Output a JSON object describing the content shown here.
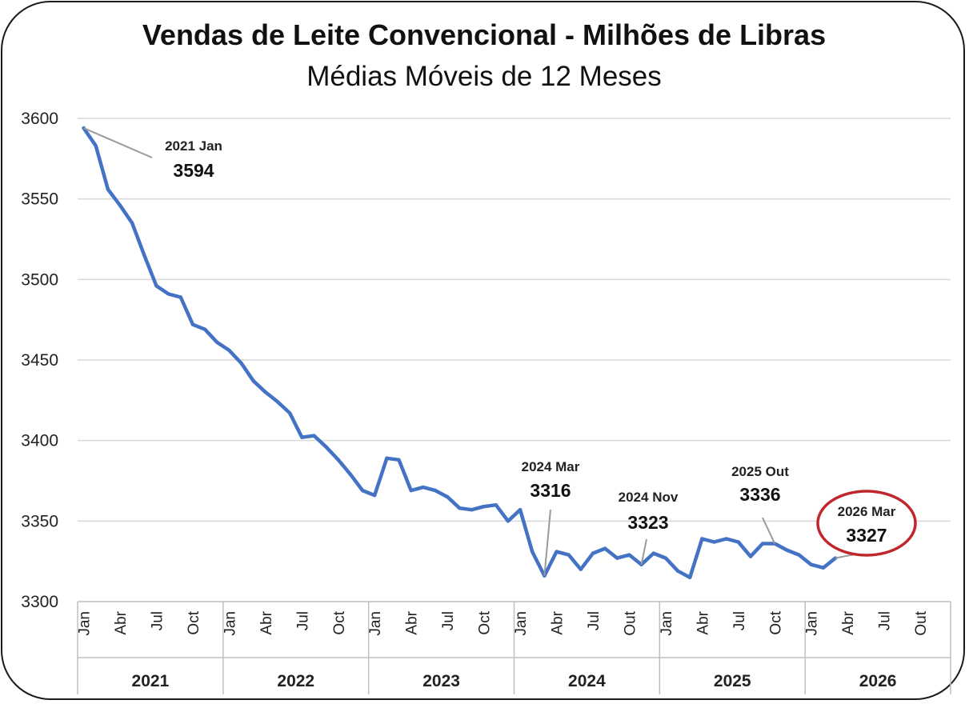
{
  "chart_data": {
    "type": "line",
    "title": "Vendas de Leite Convencional - Milhões de Libras",
    "subtitle": "Médias Móveis de 12 Meses",
    "ylim": [
      3300,
      3600
    ],
    "yticks": [
      3300,
      3350,
      3400,
      3450,
      3500,
      3550,
      3600
    ],
    "grid": true,
    "years": [
      "2021",
      "2022",
      "2023",
      "2024",
      "2025",
      "2026"
    ],
    "month_labels": [
      "Jan",
      "Abr",
      "Jul",
      "Oct",
      "Jan",
      "Abr",
      "Jul",
      "Oct",
      "Jan",
      "Abr",
      "Jul",
      "Oct",
      "Jan",
      "Abr",
      "Jul",
      "Out",
      "Jan",
      "Abr",
      "Jul",
      "Oct",
      "Jan",
      "Abr",
      "Jul",
      "Out"
    ],
    "series": [
      {
        "color": "#4472c4",
        "x_start": "2021 Jan",
        "values": [
          3594,
          3583,
          3556,
          3546,
          3535,
          3515,
          3496,
          3491,
          3489,
          3472,
          3469,
          3461,
          3456,
          3448,
          3437,
          3430,
          3424,
          3417,
          3402,
          3403,
          3396,
          3388,
          3379,
          3369,
          3366,
          3389,
          3388,
          3369,
          3371,
          3369,
          3365,
          3358,
          3357,
          3359,
          3360,
          3350,
          3357,
          3331,
          3316,
          3331,
          3329,
          3320,
          3330,
          3333,
          3327,
          3329,
          3323,
          3330,
          3327,
          3319,
          3315,
          3339,
          3337,
          3339,
          3337,
          3328,
          3336,
          3336,
          3332,
          3329,
          3323,
          3321,
          3327
        ]
      }
    ],
    "annotations": [
      {
        "label": "2021 Jan",
        "value": "3594"
      },
      {
        "label": "2024 Mar",
        "value": "3316"
      },
      {
        "label": "2024 Nov",
        "value": "3323"
      },
      {
        "label": "2025 Out",
        "value": "3336"
      },
      {
        "label": "2026 Mar",
        "value": "3327",
        "highlight": true,
        "highlight_color": "#c0272d"
      }
    ],
    "colors": {
      "line": "#4472c4",
      "grid": "#d9d9d9",
      "highlight": "#c0272d"
    }
  }
}
